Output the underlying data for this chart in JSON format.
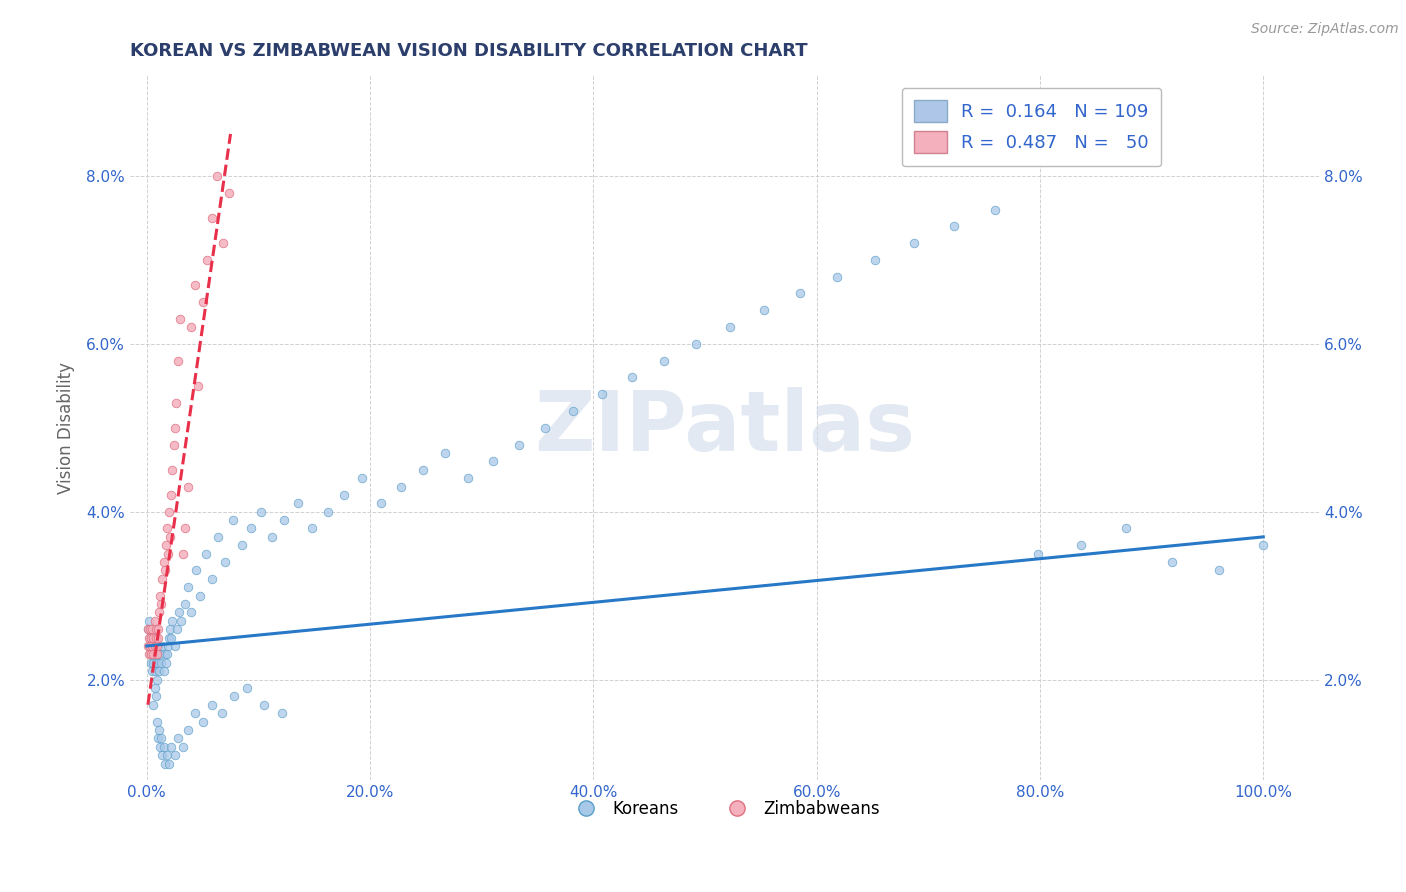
{
  "title": "KOREAN VS ZIMBABWEAN VISION DISABILITY CORRELATION CHART",
  "source_text": "Source: ZipAtlas.com",
  "ylabel": "Vision Disability",
  "y_ticks": [
    0.02,
    0.04,
    0.06,
    0.08
  ],
  "y_tick_labels": [
    "2.0%",
    "4.0%",
    "6.0%",
    "8.0%"
  ],
  "xlim": [
    -0.015,
    1.05
  ],
  "ylim": [
    0.008,
    0.092
  ],
  "watermark": "ZIPatlas",
  "korean_color": "#a8c8e8",
  "korean_edge": "#5a9ec8",
  "zimbabwean_color": "#f4b0bc",
  "zimbabwean_edge": "#e07080",
  "korean_trend_color": "#2878c8",
  "zimbabwean_trend_color": "#e8304a",
  "background_color": "#ffffff",
  "grid_color": "#cccccc",
  "title_color": "#2c3e6b",
  "axis_label_color": "#666666",
  "tick_label_color": "#3366cc",
  "korean_x": [
    0.001,
    0.002,
    0.002,
    0.003,
    0.003,
    0.004,
    0.004,
    0.005,
    0.005,
    0.006,
    0.006,
    0.007,
    0.007,
    0.008,
    0.008,
    0.009,
    0.009,
    0.01,
    0.01,
    0.011,
    0.012,
    0.013,
    0.014,
    0.015,
    0.016,
    0.017,
    0.018,
    0.019,
    0.02,
    0.021,
    0.022,
    0.023,
    0.025,
    0.027,
    0.029,
    0.031,
    0.034,
    0.037,
    0.04,
    0.044,
    0.048,
    0.053,
    0.058,
    0.064,
    0.07,
    0.077,
    0.085,
    0.093,
    0.102,
    0.112,
    0.123,
    0.135,
    0.148,
    0.162,
    0.177,
    0.193,
    0.21,
    0.228,
    0.247,
    0.267,
    0.288,
    0.31,
    0.333,
    0.357,
    0.382,
    0.408,
    0.435,
    0.463,
    0.492,
    0.522,
    0.553,
    0.585,
    0.618,
    0.652,
    0.687,
    0.723,
    0.76,
    0.798,
    0.837,
    0.877,
    0.918,
    0.96,
    1.0,
    0.006,
    0.007,
    0.008,
    0.009,
    0.01,
    0.011,
    0.012,
    0.013,
    0.014,
    0.015,
    0.016,
    0.018,
    0.02,
    0.022,
    0.025,
    0.028,
    0.032,
    0.037,
    0.043,
    0.05,
    0.058,
    0.067,
    0.078,
    0.09,
    0.105,
    0.121
  ],
  "korean_y": [
    0.026,
    0.024,
    0.027,
    0.023,
    0.025,
    0.022,
    0.024,
    0.021,
    0.023,
    0.022,
    0.024,
    0.021,
    0.023,
    0.025,
    0.022,
    0.02,
    0.023,
    0.022,
    0.024,
    0.021,
    0.023,
    0.022,
    0.024,
    0.021,
    0.023,
    0.022,
    0.023,
    0.024,
    0.025,
    0.026,
    0.025,
    0.027,
    0.024,
    0.026,
    0.028,
    0.027,
    0.029,
    0.031,
    0.028,
    0.033,
    0.03,
    0.035,
    0.032,
    0.037,
    0.034,
    0.039,
    0.036,
    0.038,
    0.04,
    0.037,
    0.039,
    0.041,
    0.038,
    0.04,
    0.042,
    0.044,
    0.041,
    0.043,
    0.045,
    0.047,
    0.044,
    0.046,
    0.048,
    0.05,
    0.052,
    0.054,
    0.056,
    0.058,
    0.06,
    0.062,
    0.064,
    0.066,
    0.068,
    0.07,
    0.072,
    0.074,
    0.076,
    0.035,
    0.036,
    0.038,
    0.034,
    0.033,
    0.036,
    0.017,
    0.019,
    0.018,
    0.015,
    0.013,
    0.014,
    0.012,
    0.013,
    0.011,
    0.012,
    0.01,
    0.011,
    0.01,
    0.012,
    0.011,
    0.013,
    0.012,
    0.014,
    0.016,
    0.015,
    0.017,
    0.016,
    0.018,
    0.019,
    0.017,
    0.016
  ],
  "zimbabwean_x": [
    0.001,
    0.001,
    0.002,
    0.002,
    0.003,
    0.003,
    0.004,
    0.004,
    0.005,
    0.005,
    0.006,
    0.006,
    0.007,
    0.007,
    0.008,
    0.008,
    0.009,
    0.009,
    0.01,
    0.01,
    0.011,
    0.012,
    0.013,
    0.014,
    0.015,
    0.016,
    0.017,
    0.018,
    0.019,
    0.02,
    0.021,
    0.022,
    0.023,
    0.024,
    0.025,
    0.026,
    0.028,
    0.03,
    0.032,
    0.034,
    0.037,
    0.04,
    0.043,
    0.046,
    0.05,
    0.054,
    0.058,
    0.063,
    0.068,
    0.074
  ],
  "zimbabwean_y": [
    0.026,
    0.024,
    0.025,
    0.023,
    0.026,
    0.024,
    0.025,
    0.023,
    0.024,
    0.026,
    0.023,
    0.025,
    0.024,
    0.027,
    0.025,
    0.026,
    0.024,
    0.023,
    0.025,
    0.026,
    0.028,
    0.03,
    0.029,
    0.032,
    0.034,
    0.033,
    0.036,
    0.038,
    0.035,
    0.04,
    0.037,
    0.042,
    0.045,
    0.048,
    0.05,
    0.053,
    0.058,
    0.063,
    0.035,
    0.038,
    0.043,
    0.062,
    0.067,
    0.055,
    0.065,
    0.07,
    0.075,
    0.08,
    0.072,
    0.078
  ],
  "korean_trend_x": [
    0.0,
    1.0
  ],
  "korean_trend_y": [
    0.024,
    0.037
  ],
  "zimbabwean_trend_x": [
    0.001,
    0.075
  ],
  "zimbabwean_trend_y": [
    0.017,
    0.085
  ]
}
